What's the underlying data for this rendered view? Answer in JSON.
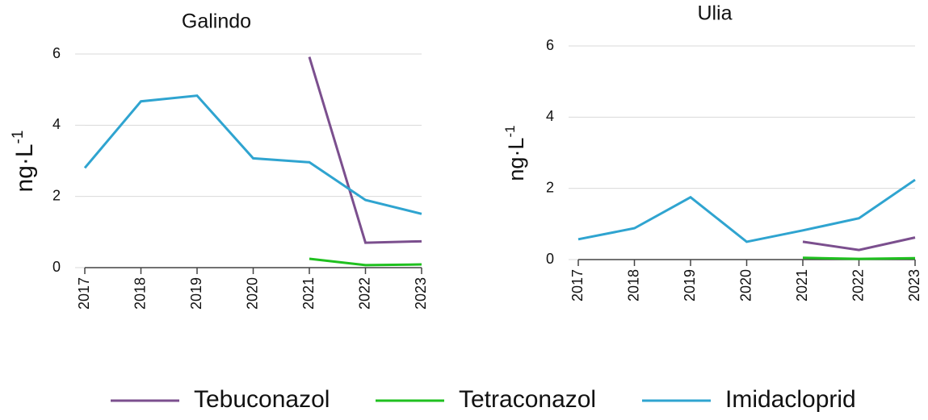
{
  "legend": [
    {
      "name": "Tebuconazol",
      "color": "#7b4f8e"
    },
    {
      "name": "Tetraconazol",
      "color": "#1fc01f"
    },
    {
      "name": "Imidacloprid",
      "color": "#2fa4d0"
    }
  ],
  "chart_data": [
    {
      "type": "line",
      "title": "Galindo",
      "ylabel": {
        "text": "ng·L",
        "superscript": "-1"
      },
      "categories": [
        "2017",
        "2018",
        "2019",
        "2020",
        "2021",
        "2022",
        "2023"
      ],
      "series": [
        {
          "values": [
            null,
            null,
            null,
            null,
            5.92,
            0.7,
            0.74
          ]
        },
        {
          "values": [
            null,
            null,
            null,
            null,
            0.25,
            0.07,
            0.09
          ]
        },
        {
          "values": [
            2.8,
            4.67,
            4.83,
            3.07,
            2.96,
            1.9,
            1.51
          ]
        }
      ],
      "ylim": [
        0,
        6
      ],
      "yticks": [
        0,
        2,
        4,
        6
      ],
      "grid": true
    },
    {
      "type": "line",
      "title": "Ulia",
      "ylabel": {
        "text": "ng·L",
        "superscript": "-1"
      },
      "categories": [
        "2017",
        "2018",
        "2019",
        "2020",
        "2021",
        "2022",
        "2023"
      ],
      "series": [
        {
          "values": [
            null,
            null,
            null,
            null,
            0.5,
            0.27,
            0.62
          ]
        },
        {
          "values": [
            null,
            null,
            null,
            null,
            0.05,
            0.02,
            0.04
          ]
        },
        {
          "values": [
            0.57,
            0.88,
            1.75,
            0.5,
            0.82,
            1.16,
            2.24
          ]
        }
      ],
      "ylim": [
        0,
        6
      ],
      "yticks": [
        0,
        2,
        4,
        6
      ],
      "grid": true
    }
  ]
}
